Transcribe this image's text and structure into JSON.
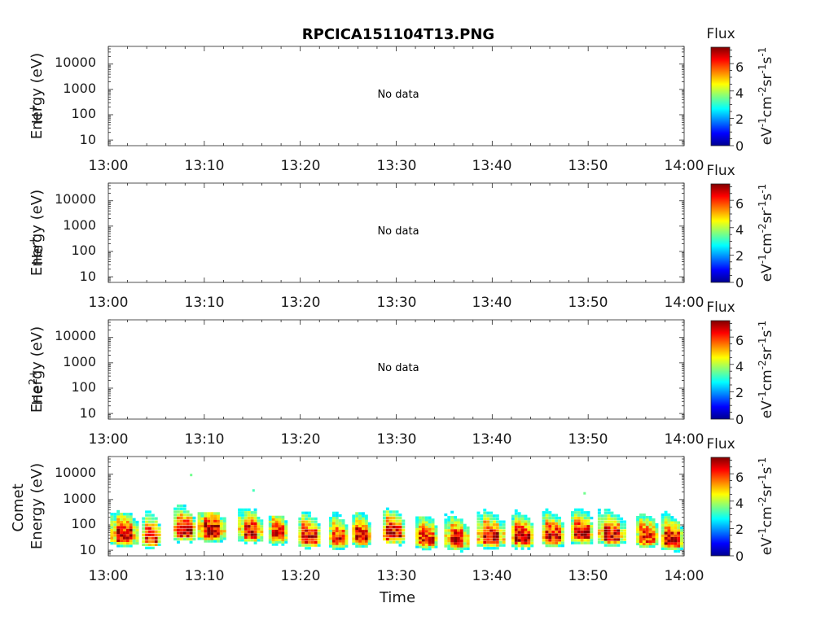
{
  "title": "RPCICA151104T13.PNG",
  "xlabel": "Time",
  "x_ticks": [
    "13:00",
    "13:10",
    "13:20",
    "13:30",
    "13:40",
    "13:50",
    "14:00"
  ],
  "y_ticks": [
    "10000",
    "1000",
    "100",
    "10"
  ],
  "colorbar": {
    "title": "Flux",
    "label": "eV-1cm-2sr-1s-1",
    "ticks": [
      "6",
      "4",
      "2",
      "0"
    ],
    "range": [
      0,
      7.2
    ],
    "colormap": "jet"
  },
  "panels": [
    {
      "species": "H",
      "charge": "+",
      "ylabel": "Energy (eV)",
      "note": "No data"
    },
    {
      "species": "He",
      "charge": "+",
      "ylabel": "Energy (eV)",
      "note": "No data"
    },
    {
      "species": "He",
      "charge": "2+",
      "ylabel": "Energy (eV)",
      "note": "No data"
    },
    {
      "species": "Comet",
      "charge": "",
      "ylabel": "Energy (eV)",
      "note": ""
    }
  ],
  "chart_data": {
    "type": "heatmap",
    "title": "RPCICA151104T13.PNG",
    "xlabel": "Time",
    "ylabel": "Energy (eV)",
    "x_range": [
      "13:00",
      "14:00"
    ],
    "y_scale": "log",
    "y_range": [
      6,
      50000
    ],
    "color_range": [
      0,
      7.2
    ],
    "series": [
      {
        "name": "H+",
        "has_data": false
      },
      {
        "name": "He+",
        "has_data": false
      },
      {
        "name": "He2+",
        "has_data": false
      },
      {
        "name": "Comet",
        "has_data": true,
        "bursts": [
          {
            "t": 0.2,
            "t2": 3.2,
            "e_peak": 30,
            "e_top": 300,
            "peak": 7.0
          },
          {
            "t": 3.5,
            "t2": 5.4,
            "e_peak": 25,
            "e_top": 700,
            "peak": 6.6
          },
          {
            "t": 6.8,
            "t2": 9.2,
            "e_peak": 45,
            "e_top": 500,
            "peak": 7.0
          },
          {
            "t": 9.3,
            "t2": 12.3,
            "e_peak": 45,
            "e_top": 250,
            "peak": 7.0
          },
          {
            "t": 13.5,
            "t2": 16.2,
            "e_peak": 40,
            "e_top": 350,
            "peak": 6.8
          },
          {
            "t": 16.7,
            "t2": 18.6,
            "e_peak": 35,
            "e_top": 180,
            "peak": 6.3
          },
          {
            "t": 19.8,
            "t2": 22.0,
            "e_peak": 25,
            "e_top": 450,
            "peak": 6.6
          },
          {
            "t": 23.0,
            "t2": 25.0,
            "e_peak": 22,
            "e_top": 260,
            "peak": 6.3
          },
          {
            "t": 25.4,
            "t2": 27.4,
            "e_peak": 28,
            "e_top": 250,
            "peak": 6.8
          },
          {
            "t": 28.6,
            "t2": 31.0,
            "e_peak": 35,
            "e_top": 500,
            "peak": 6.8
          },
          {
            "t": 32.0,
            "t2": 34.2,
            "e_peak": 22,
            "e_top": 170,
            "peak": 6.3
          },
          {
            "t": 35.0,
            "t2": 37.6,
            "e_peak": 20,
            "e_top": 280,
            "peak": 6.8
          },
          {
            "t": 38.4,
            "t2": 41.5,
            "e_peak": 25,
            "e_top": 450,
            "peak": 7.0
          },
          {
            "t": 42.0,
            "t2": 44.2,
            "e_peak": 25,
            "e_top": 320,
            "peak": 6.8
          },
          {
            "t": 45.2,
            "t2": 47.4,
            "e_peak": 28,
            "e_top": 350,
            "peak": 6.6
          },
          {
            "t": 48.2,
            "t2": 50.6,
            "e_peak": 35,
            "e_top": 350,
            "peak": 6.8
          },
          {
            "t": 51.0,
            "t2": 54.0,
            "e_peak": 30,
            "e_top": 450,
            "peak": 6.8
          },
          {
            "t": 55.0,
            "t2": 57.2,
            "e_peak": 25,
            "e_top": 220,
            "peak": 6.3
          },
          {
            "t": 57.6,
            "t2": 59.9,
            "e_peak": 20,
            "e_top": 280,
            "peak": 6.8
          }
        ],
        "isolated_points": [
          {
            "t": 8.5,
            "e": 9000,
            "value": 3.5
          },
          {
            "t": 15.0,
            "e": 2200,
            "value": 3.2
          },
          {
            "t": 49.5,
            "e": 1700,
            "value": 3.5
          }
        ]
      }
    ]
  }
}
